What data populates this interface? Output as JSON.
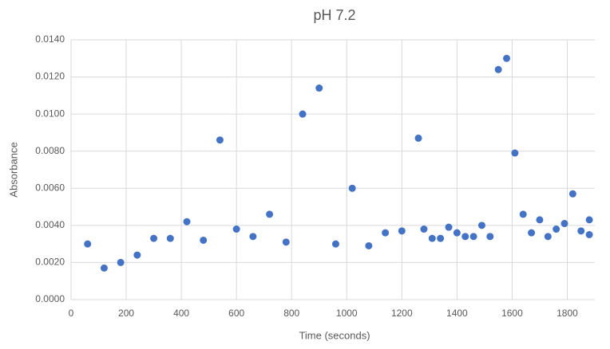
{
  "chart_data": {
    "type": "scatter",
    "title": "pH 7.2",
    "x_label": "Time (seconds)",
    "y_label": "Absorbance",
    "series": [
      {
        "color": "#4472c4",
        "x": [
          60,
          120,
          180,
          240,
          300,
          360,
          420,
          480,
          540,
          600,
          660,
          720,
          780,
          840,
          900,
          960,
          1020,
          1080,
          1140,
          1200,
          1260,
          1280,
          1310,
          1340,
          1370,
          1400,
          1430,
          1460,
          1490,
          1520,
          1550,
          1580,
          1610,
          1640,
          1670,
          1700,
          1730,
          1760,
          1790,
          1820,
          1850,
          1880,
          1880
        ],
        "values": [
          0.003,
          0.0017,
          0.002,
          0.0024,
          0.0033,
          0.0033,
          0.0042,
          0.0032,
          0.0086,
          0.0038,
          0.0034,
          0.0046,
          0.0031,
          0.01,
          0.0114,
          0.003,
          0.006,
          0.0029,
          0.0036,
          0.0037,
          0.0087,
          0.0038,
          0.0033,
          0.0033,
          0.0039,
          0.0036,
          0.0034,
          0.0034,
          0.004,
          0.0034,
          0.0124,
          0.013,
          0.0079,
          0.0046,
          0.0036,
          0.0043,
          0.0034,
          0.0038,
          0.0041,
          0.0057,
          0.0037,
          0.0035,
          0.0043
        ]
      }
    ],
    "xlim": [
      0,
      1900
    ],
    "xticks": [
      0,
      200,
      400,
      600,
      800,
      1000,
      1200,
      1400,
      1600,
      1800
    ],
    "ylim": [
      0,
      0.014
    ],
    "yticks": [
      {
        "value": 0,
        "label": "0.0000"
      },
      {
        "value": 0.002,
        "label": "0.0020"
      },
      {
        "value": 0.004,
        "label": "0.0040"
      },
      {
        "value": 0.006,
        "label": "0.0060"
      },
      {
        "value": 0.008,
        "label": "0.0080"
      },
      {
        "value": 0.01,
        "label": "0.0100"
      },
      {
        "value": 0.012,
        "label": "0.0120"
      },
      {
        "value": 0.014,
        "label": "0.0140"
      }
    ],
    "grid": true
  }
}
